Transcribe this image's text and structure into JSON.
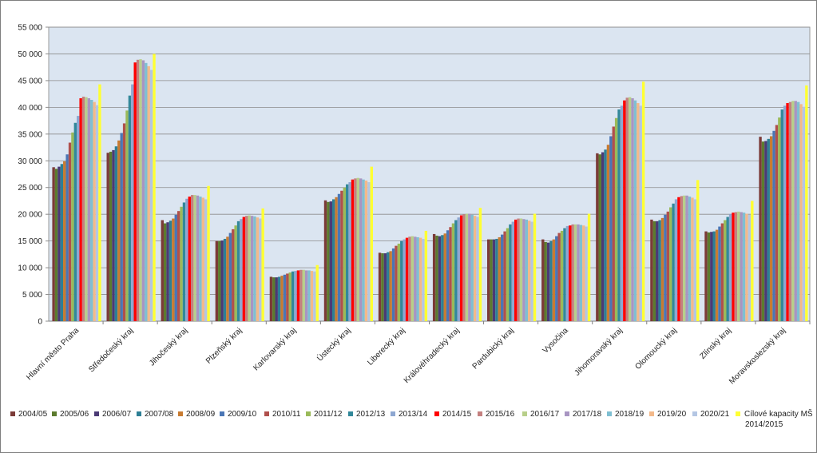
{
  "chart_data": {
    "type": "bar",
    "title": "",
    "xlabel": "",
    "ylabel": "",
    "ylim": [
      0,
      55000
    ],
    "yticks": [
      "0",
      "5 000",
      "10 000",
      "15 000",
      "20 000",
      "25 000",
      "30 000",
      "35 000",
      "40 000",
      "45 000",
      "50 000",
      "55 000"
    ],
    "grid": true,
    "legend_position": "bottom",
    "plot_background": "#dbe5f1",
    "categories": [
      "Hlavní město Praha",
      "Středočeský kraj",
      "Jihočeský kraj",
      "Plzeňský kraj",
      "Karlovarský kraj",
      "Ústecký kraj",
      "Liberecký kraj",
      "Královéhradecký kraj",
      "Pardubický kraj",
      "Vysočina",
      "Jihomoravský kraj",
      "Olomoucký kraj",
      "Zlínský kraj",
      "Moravskoslezský kraj"
    ],
    "series": [
      {
        "name": "2004/05",
        "color": "#7b3b38",
        "values": [
          28800,
          31500,
          18900,
          15000,
          8300,
          22600,
          12800,
          16300,
          15300,
          15300,
          31400,
          19000,
          16800,
          34500
        ]
      },
      {
        "name": "2005/06",
        "color": "#5c7b2e",
        "values": [
          28500,
          31700,
          18300,
          15000,
          8200,
          22300,
          12700,
          16000,
          15300,
          14800,
          31200,
          18700,
          16600,
          33600
        ]
      },
      {
        "name": "2006/07",
        "color": "#4b3a75",
        "values": [
          28900,
          32000,
          18500,
          15100,
          8200,
          22400,
          12700,
          15900,
          15300,
          14700,
          31600,
          18700,
          16700,
          33700
        ]
      },
      {
        "name": "2007/08",
        "color": "#2d7f95",
        "values": [
          29400,
          32700,
          18800,
          15400,
          8300,
          22800,
          12900,
          16100,
          15400,
          15000,
          32100,
          18900,
          16800,
          34100
        ]
      },
      {
        "name": "2008/09",
        "color": "#c87b31",
        "values": [
          29900,
          33800,
          19200,
          15800,
          8500,
          23200,
          13100,
          16400,
          15700,
          15300,
          33000,
          19300,
          17100,
          34600
        ]
      },
      {
        "name": "2009/10",
        "color": "#4a76b5",
        "values": [
          31200,
          35200,
          19900,
          16500,
          8700,
          23800,
          13600,
          17000,
          16200,
          15900,
          34600,
          19900,
          17700,
          35600
        ]
      },
      {
        "name": "2010/11",
        "color": "#b0504c",
        "values": [
          33400,
          37000,
          20600,
          17200,
          8900,
          24400,
          14100,
          17600,
          16800,
          16500,
          36400,
          20500,
          18300,
          36700
        ]
      },
      {
        "name": "2011/12",
        "color": "#9aba59",
        "values": [
          35300,
          39400,
          21400,
          17900,
          9100,
          25000,
          14500,
          18300,
          17400,
          16900,
          38000,
          21300,
          18900,
          38100
        ]
      },
      {
        "name": "2012/13",
        "color": "#32889a",
        "values": [
          37100,
          42200,
          22200,
          18700,
          9300,
          25600,
          15000,
          18900,
          18100,
          17400,
          39600,
          22000,
          19500,
          39600
        ]
      },
      {
        "name": "2013/14",
        "color": "#8ea7d1",
        "values": [
          38400,
          44300,
          22900,
          19100,
          9400,
          26000,
          15300,
          19400,
          18600,
          17800,
          40300,
          22800,
          20000,
          40300
        ]
      },
      {
        "name": "2014/15",
        "color": "#ff0000",
        "values": [
          41700,
          48400,
          23300,
          19500,
          9500,
          26500,
          15600,
          19800,
          19000,
          17900,
          41300,
          23200,
          20300,
          40800
        ]
      },
      {
        "name": "2015/16",
        "color": "#c4807f",
        "values": [
          42000,
          48900,
          23600,
          19700,
          9600,
          26700,
          15800,
          20000,
          19200,
          18100,
          41800,
          23400,
          20400,
          41000
        ]
      },
      {
        "name": "2016/17",
        "color": "#b8cf8a",
        "values": [
          41900,
          49000,
          23600,
          19800,
          9600,
          26800,
          15900,
          20100,
          19200,
          18100,
          41900,
          23500,
          20500,
          41200
        ]
      },
      {
        "name": "2017/18",
        "color": "#a895c2",
        "values": [
          41700,
          48800,
          23500,
          19700,
          9500,
          26700,
          15800,
          20100,
          19100,
          18100,
          41700,
          23500,
          20400,
          41200
        ]
      },
      {
        "name": "2018/19",
        "color": "#7fbfd2",
        "values": [
          41400,
          48300,
          23300,
          19600,
          9500,
          26500,
          15700,
          19900,
          19000,
          18000,
          41300,
          23300,
          20300,
          41000
        ]
      },
      {
        "name": "2019/20",
        "color": "#f3b98a",
        "values": [
          41000,
          47700,
          23100,
          19400,
          9400,
          26300,
          15600,
          19700,
          18800,
          17900,
          40800,
          23100,
          20100,
          40600
        ]
      },
      {
        "name": "2020/21",
        "color": "#b4c6e3",
        "values": [
          40400,
          47000,
          22800,
          19200,
          9300,
          26000,
          15400,
          19500,
          18600,
          17700,
          40300,
          22800,
          19900,
          40100
        ]
      },
      {
        "name": "Cílové kapacity MŠ 2014/2015",
        "color": "#ffff33",
        "values": [
          44300,
          50000,
          25300,
          21100,
          10500,
          28900,
          16900,
          21200,
          20100,
          20100,
          44800,
          26400,
          22500,
          44100
        ]
      }
    ]
  }
}
